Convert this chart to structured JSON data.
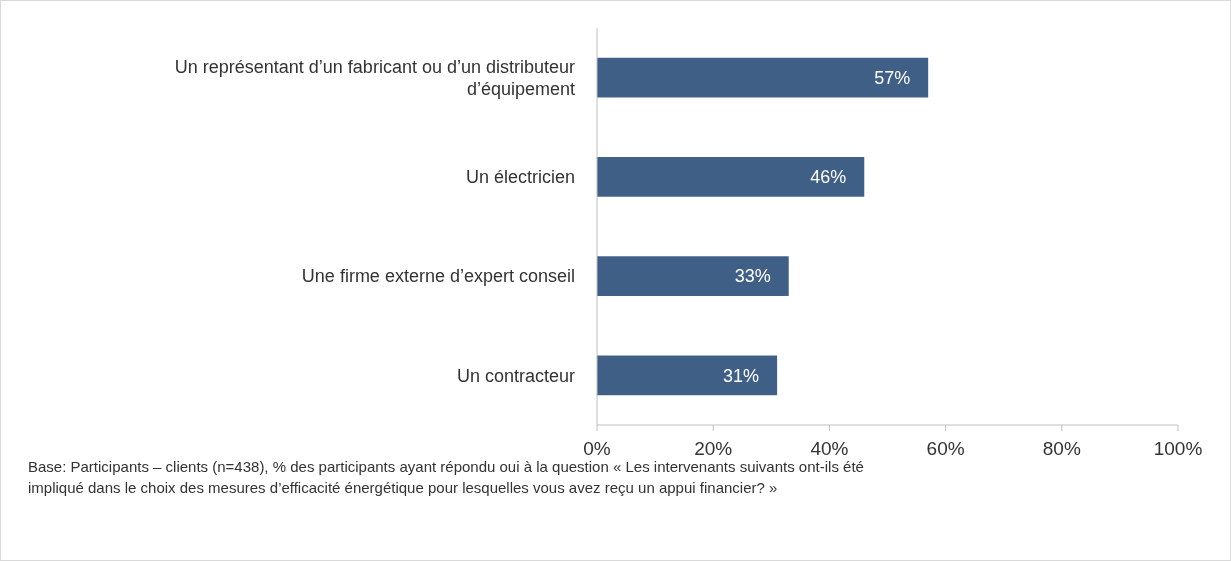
{
  "chart_data": {
    "type": "bar",
    "orientation": "horizontal",
    "categories": [
      "Un représentant d’un fabricant ou d’un distributeur d’équipement",
      "Un électricien",
      "Une firme externe d’expert conseil",
      "Un contracteur"
    ],
    "values": [
      57,
      46,
      33,
      31
    ],
    "value_labels": [
      "57%",
      "46%",
      "33%",
      "31%"
    ],
    "color": "#3f5f87",
    "xlim": [
      0,
      100
    ],
    "xticks": [
      {
        "value": 0,
        "label": "0%"
      },
      {
        "value": 20,
        "label": "20%"
      },
      {
        "value": 40,
        "label": "40%"
      },
      {
        "value": 60,
        "label": "60%"
      },
      {
        "value": 80,
        "label": "80%"
      },
      {
        "value": 100,
        "label": "100%"
      }
    ],
    "grid": false,
    "annotations": [
      "Base: Participants – clients (n=438), % des participants ayant répondu oui à la question « Les intervenants suivants ont-ils été impliqué dans le choix des mesures d’efficacité énergétique pour lesquelles vous avez reçu un appui financier? »"
    ]
  }
}
